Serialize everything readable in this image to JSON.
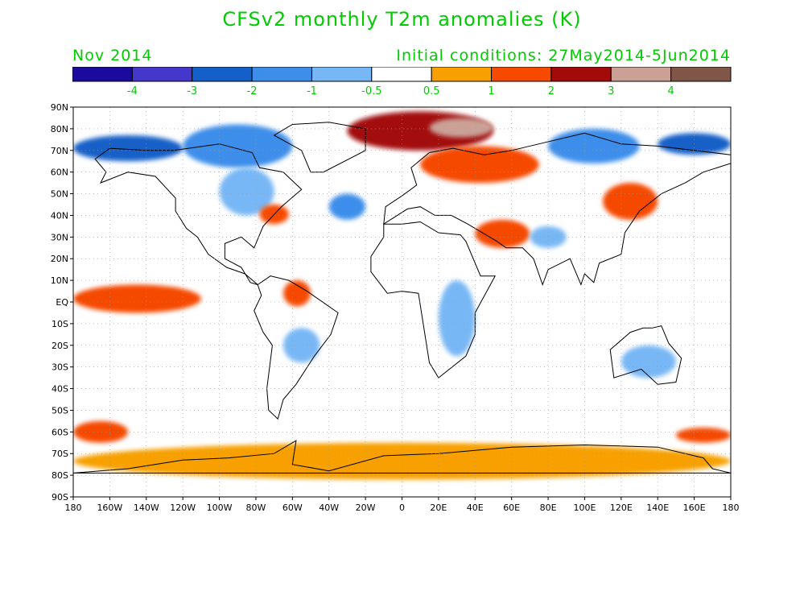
{
  "title": "CFSv2 monthly T2m anomalies (K)",
  "valid_period": "Nov 2014",
  "initial_conditions": "Initial conditions: 27May2014-5Jun2014",
  "colors": {
    "label_green": "#00cc00"
  },
  "colorbar": {
    "colors": [
      "#1a0a9e",
      "#4537cc",
      "#1560c8",
      "#3d8eea",
      "#78b7f5",
      "#ffffff",
      "#f7a000",
      "#f54a00",
      "#a30a0a",
      "#cba196",
      "#7f5648"
    ],
    "labels": [
      "-4",
      "-3",
      "-2",
      "-1",
      "-0.5",
      "0.5",
      "1",
      "2",
      "3",
      "4"
    ]
  },
  "chart_data": {
    "type": "heatmap",
    "title": "CFSv2 monthly T2m anomalies (K)",
    "xlim": [
      -180,
      180
    ],
    "ylim": [
      -90,
      90
    ],
    "lat_ticks": [
      "90N",
      "80N",
      "70N",
      "60N",
      "50N",
      "40N",
      "30N",
      "20N",
      "10N",
      "EQ",
      "10S",
      "20S",
      "30S",
      "40S",
      "50S",
      "60S",
      "70S",
      "80S",
      "90S"
    ],
    "lon_ticks": [
      "180",
      "160W",
      "140W",
      "120W",
      "100W",
      "80W",
      "60W",
      "40W",
      "20W",
      "0",
      "20E",
      "40E",
      "60E",
      "80E",
      "100E",
      "120E",
      "140E",
      "160E",
      "180"
    ],
    "levels": [
      -4,
      -3,
      -2,
      -1,
      -0.5,
      0.5,
      1,
      2,
      3,
      4
    ],
    "anomaly_regions": [
      {
        "lon": [
          -180,
          -120
        ],
        "lat": [
          65,
          77
        ],
        "value": -2.5
      },
      {
        "lon": [
          -120,
          -60
        ],
        "lat": [
          62,
          82
        ],
        "value": -2.0
      },
      {
        "lon": [
          -100,
          -70
        ],
        "lat": [
          40,
          62
        ],
        "value": -0.7
      },
      {
        "lon": [
          -78,
          -62
        ],
        "lat": [
          36,
          45
        ],
        "value": 1.8
      },
      {
        "lon": [
          -40,
          -20
        ],
        "lat": [
          38,
          50
        ],
        "value": -1.2
      },
      {
        "lon": [
          -30,
          50
        ],
        "lat": [
          70,
          88
        ],
        "value": 2.5
      },
      {
        "lon": [
          15,
          50
        ],
        "lat": [
          76,
          85
        ],
        "value": 3.5
      },
      {
        "lon": [
          10,
          75
        ],
        "lat": [
          55,
          72
        ],
        "value": 1.6
      },
      {
        "lon": [
          80,
          130
        ],
        "lat": [
          64,
          80
        ],
        "value": -2.0
      },
      {
        "lon": [
          140,
          180
        ],
        "lat": [
          68,
          78
        ],
        "value": -3.0
      },
      {
        "lon": [
          110,
          140
        ],
        "lat": [
          38,
          55
        ],
        "value": 1.5
      },
      {
        "lon": [
          40,
          70
        ],
        "lat": [
          25,
          38
        ],
        "value": 1.2
      },
      {
        "lon": [
          70,
          90
        ],
        "lat": [
          25,
          35
        ],
        "value": -0.8
      },
      {
        "lon": [
          -180,
          -110
        ],
        "lat": [
          -5,
          8
        ],
        "value": 1.8
      },
      {
        "lon": [
          -65,
          -50
        ],
        "lat": [
          -2,
          10
        ],
        "value": 1.5
      },
      {
        "lon": [
          -65,
          -45
        ],
        "lat": [
          -28,
          -12
        ],
        "value": -1.0
      },
      {
        "lon": [
          20,
          40
        ],
        "lat": [
          -25,
          10
        ],
        "value": -0.8
      },
      {
        "lon": [
          120,
          150
        ],
        "lat": [
          -35,
          -20
        ],
        "value": -0.7
      },
      {
        "lon": [
          -180,
          -150
        ],
        "lat": [
          -65,
          -55
        ],
        "value": 1.8
      },
      {
        "lon": [
          150,
          180
        ],
        "lat": [
          -65,
          -58
        ],
        "value": 1.5
      },
      {
        "lon": [
          -180,
          180
        ],
        "lat": [
          -82,
          -65
        ],
        "value": 0.8
      }
    ]
  }
}
